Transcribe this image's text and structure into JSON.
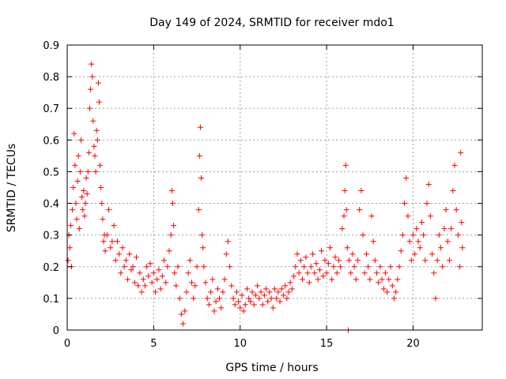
{
  "chart_data": {
    "type": "scatter",
    "title": "Day 149 of 2024, SRMTID for receiver mdo1",
    "xlabel": "GPS time / hours",
    "ylabel": "SRMTID / TECUs",
    "xlim": [
      0,
      24
    ],
    "ylim": [
      0,
      0.9
    ],
    "grid": true,
    "marker": "+",
    "color": "#ff0000",
    "x_ticks": [
      0,
      5,
      10,
      15,
      20
    ],
    "x_tick_labels": [
      "0",
      "5",
      "10",
      "15",
      "20"
    ],
    "y_ticks": [
      0,
      0.1,
      0.2,
      0.3,
      0.4,
      0.5,
      0.6,
      0.7,
      0.8,
      0.9
    ],
    "y_tick_labels": [
      "0",
      "0.1",
      "0.2",
      "0.3",
      "0.4",
      "0.5",
      "0.6",
      "0.7",
      "0.8",
      "0.9"
    ],
    "series": [
      {
        "name": "SRMTID",
        "points": [
          [
            0.05,
            0.22
          ],
          [
            0.1,
            0.3
          ],
          [
            0.15,
            0.26
          ],
          [
            0.2,
            0.33
          ],
          [
            0.25,
            0.2
          ],
          [
            0.3,
            0.38
          ],
          [
            0.35,
            0.45
          ],
          [
            0.4,
            0.62
          ],
          [
            0.45,
            0.52
          ],
          [
            0.5,
            0.4
          ],
          [
            0.55,
            0.35
          ],
          [
            0.6,
            0.47
          ],
          [
            0.65,
            0.55
          ],
          [
            0.7,
            0.32
          ],
          [
            0.75,
            0.5
          ],
          [
            0.8,
            0.6
          ],
          [
            0.85,
            0.42
          ],
          [
            0.9,
            0.38
          ],
          [
            0.95,
            0.44
          ],
          [
            1.0,
            0.36
          ],
          [
            1.05,
            0.4
          ],
          [
            1.1,
            0.48
          ],
          [
            1.15,
            0.43
          ],
          [
            1.2,
            0.5
          ],
          [
            1.25,
            0.56
          ],
          [
            1.3,
            0.7
          ],
          [
            1.35,
            0.76
          ],
          [
            1.4,
            0.84
          ],
          [
            1.45,
            0.8
          ],
          [
            1.5,
            0.66
          ],
          [
            1.55,
            0.58
          ],
          [
            1.6,
            0.55
          ],
          [
            1.65,
            0.5
          ],
          [
            1.7,
            0.63
          ],
          [
            1.75,
            0.6
          ],
          [
            1.8,
            0.78
          ],
          [
            1.85,
            0.72
          ],
          [
            1.9,
            0.52
          ],
          [
            1.95,
            0.45
          ],
          [
            2.0,
            0.4
          ],
          [
            2.05,
            0.35
          ],
          [
            2.1,
            0.28
          ],
          [
            2.15,
            0.3
          ],
          [
            2.2,
            0.25
          ],
          [
            2.3,
            0.3
          ],
          [
            2.4,
            0.38
          ],
          [
            2.5,
            0.26
          ],
          [
            2.6,
            0.28
          ],
          [
            2.7,
            0.33
          ],
          [
            2.8,
            0.22
          ],
          [
            2.9,
            0.28
          ],
          [
            3.0,
            0.24
          ],
          [
            3.1,
            0.18
          ],
          [
            3.2,
            0.26
          ],
          [
            3.3,
            0.2
          ],
          [
            3.4,
            0.22
          ],
          [
            3.5,
            0.16
          ],
          [
            3.6,
            0.24
          ],
          [
            3.7,
            0.19
          ],
          [
            3.8,
            0.2
          ],
          [
            3.9,
            0.15
          ],
          [
            4.0,
            0.23
          ],
          [
            4.1,
            0.14
          ],
          [
            4.2,
            0.18
          ],
          [
            4.3,
            0.12
          ],
          [
            4.4,
            0.16
          ],
          [
            4.5,
            0.14
          ],
          [
            4.6,
            0.2
          ],
          [
            4.7,
            0.17
          ],
          [
            4.8,
            0.21
          ],
          [
            4.9,
            0.15
          ],
          [
            5.0,
            0.18
          ],
          [
            5.1,
            0.12
          ],
          [
            5.2,
            0.16
          ],
          [
            5.3,
            0.19
          ],
          [
            5.4,
            0.13
          ],
          [
            5.5,
            0.17
          ],
          [
            5.6,
            0.22
          ],
          [
            5.7,
            0.15
          ],
          [
            5.8,
            0.2
          ],
          [
            5.9,
            0.25
          ],
          [
            6.0,
            0.3
          ],
          [
            6.05,
            0.44
          ],
          [
            6.1,
            0.4
          ],
          [
            6.15,
            0.33
          ],
          [
            6.2,
            0.18
          ],
          [
            6.3,
            0.14
          ],
          [
            6.4,
            0.2
          ],
          [
            6.5,
            0.1
          ],
          [
            6.6,
            0.05
          ],
          [
            6.7,
            0.02
          ],
          [
            6.8,
            0.06
          ],
          [
            6.9,
            0.12
          ],
          [
            7.0,
            0.18
          ],
          [
            7.1,
            0.22
          ],
          [
            7.2,
            0.15
          ],
          [
            7.3,
            0.1
          ],
          [
            7.4,
            0.14
          ],
          [
            7.5,
            0.2
          ],
          [
            7.6,
            0.38
          ],
          [
            7.65,
            0.55
          ],
          [
            7.7,
            0.64
          ],
          [
            7.75,
            0.48
          ],
          [
            7.8,
            0.3
          ],
          [
            7.85,
            0.26
          ],
          [
            7.9,
            0.2
          ],
          [
            8.0,
            0.15
          ],
          [
            8.1,
            0.1
          ],
          [
            8.2,
            0.08
          ],
          [
            8.3,
            0.12
          ],
          [
            8.4,
            0.16
          ],
          [
            8.5,
            0.06
          ],
          [
            8.6,
            0.09
          ],
          [
            8.7,
            0.13
          ],
          [
            8.8,
            0.1
          ],
          [
            8.9,
            0.07
          ],
          [
            9.0,
            0.12
          ],
          [
            9.1,
            0.16
          ],
          [
            9.2,
            0.24
          ],
          [
            9.3,
            0.28
          ],
          [
            9.4,
            0.2
          ],
          [
            9.5,
            0.14
          ],
          [
            9.6,
            0.1
          ],
          [
            9.7,
            0.08
          ],
          [
            9.8,
            0.12
          ],
          [
            9.9,
            0.09
          ],
          [
            10.0,
            0.07
          ],
          [
            10.1,
            0.11
          ],
          [
            10.2,
            0.06
          ],
          [
            10.3,
            0.08
          ],
          [
            10.4,
            0.13
          ],
          [
            10.5,
            0.1
          ],
          [
            10.6,
            0.09
          ],
          [
            10.7,
            0.12
          ],
          [
            10.8,
            0.08
          ],
          [
            10.9,
            0.11
          ],
          [
            11.0,
            0.14
          ],
          [
            11.1,
            0.1
          ],
          [
            11.2,
            0.12
          ],
          [
            11.3,
            0.08
          ],
          [
            11.4,
            0.11
          ],
          [
            11.5,
            0.13
          ],
          [
            11.6,
            0.09
          ],
          [
            11.7,
            0.12
          ],
          [
            11.8,
            0.1
          ],
          [
            11.9,
            0.07
          ],
          [
            12.0,
            0.13
          ],
          [
            12.1,
            0.1
          ],
          [
            12.2,
            0.12
          ],
          [
            12.3,
            0.09
          ],
          [
            12.4,
            0.13
          ],
          [
            12.5,
            0.11
          ],
          [
            12.6,
            0.14
          ],
          [
            12.7,
            0.1
          ],
          [
            12.8,
            0.12
          ],
          [
            12.9,
            0.15
          ],
          [
            13.0,
            0.13
          ],
          [
            13.1,
            0.17
          ],
          [
            13.2,
            0.2
          ],
          [
            13.3,
            0.24
          ],
          [
            13.4,
            0.18
          ],
          [
            13.5,
            0.22
          ],
          [
            13.6,
            0.16
          ],
          [
            13.7,
            0.2
          ],
          [
            13.8,
            0.23
          ],
          [
            13.9,
            0.18
          ],
          [
            14.0,
            0.15
          ],
          [
            14.1,
            0.2
          ],
          [
            14.2,
            0.24
          ],
          [
            14.3,
            0.18
          ],
          [
            14.4,
            0.21
          ],
          [
            14.5,
            0.16
          ],
          [
            14.6,
            0.19
          ],
          [
            14.7,
            0.25
          ],
          [
            14.8,
            0.17
          ],
          [
            14.9,
            0.22
          ],
          [
            15.0,
            0.18
          ],
          [
            15.1,
            0.21
          ],
          [
            15.2,
            0.26
          ],
          [
            15.3,
            0.16
          ],
          [
            15.4,
            0.2
          ],
          [
            15.5,
            0.23
          ],
          [
            15.6,
            0.18
          ],
          [
            15.7,
            0.22
          ],
          [
            15.8,
            0.2
          ],
          [
            15.9,
            0.32
          ],
          [
            16.0,
            0.36
          ],
          [
            16.05,
            0.44
          ],
          [
            16.1,
            0.52
          ],
          [
            16.15,
            0.38
          ],
          [
            16.2,
            0.26
          ],
          [
            16.25,
            0.0
          ],
          [
            16.3,
            0.22
          ],
          [
            16.4,
            0.18
          ],
          [
            16.5,
            0.24
          ],
          [
            16.6,
            0.2
          ],
          [
            16.7,
            0.16
          ],
          [
            16.8,
            0.22
          ],
          [
            16.9,
            0.38
          ],
          [
            17.0,
            0.44
          ],
          [
            17.1,
            0.3
          ],
          [
            17.2,
            0.18
          ],
          [
            17.3,
            0.24
          ],
          [
            17.4,
            0.2
          ],
          [
            17.5,
            0.16
          ],
          [
            17.6,
            0.36
          ],
          [
            17.7,
            0.28
          ],
          [
            17.8,
            0.22
          ],
          [
            17.9,
            0.18
          ],
          [
            18.0,
            0.15
          ],
          [
            18.1,
            0.2
          ],
          [
            18.2,
            0.16
          ],
          [
            18.3,
            0.13
          ],
          [
            18.4,
            0.18
          ],
          [
            18.5,
            0.12
          ],
          [
            18.6,
            0.16
          ],
          [
            18.7,
            0.2
          ],
          [
            18.8,
            0.14
          ],
          [
            18.9,
            0.1
          ],
          [
            19.0,
            0.12
          ],
          [
            19.1,
            0.16
          ],
          [
            19.2,
            0.2
          ],
          [
            19.3,
            0.25
          ],
          [
            19.4,
            0.3
          ],
          [
            19.5,
            0.4
          ],
          [
            19.6,
            0.48
          ],
          [
            19.7,
            0.36
          ],
          [
            19.8,
            0.28
          ],
          [
            19.9,
            0.22
          ],
          [
            20.0,
            0.3
          ],
          [
            20.1,
            0.24
          ],
          [
            20.2,
            0.32
          ],
          [
            20.3,
            0.28
          ],
          [
            20.4,
            0.26
          ],
          [
            20.5,
            0.34
          ],
          [
            20.6,
            0.3
          ],
          [
            20.7,
            0.22
          ],
          [
            20.8,
            0.4
          ],
          [
            20.9,
            0.46
          ],
          [
            21.0,
            0.36
          ],
          [
            21.1,
            0.24
          ],
          [
            21.2,
            0.18
          ],
          [
            21.3,
            0.1
          ],
          [
            21.4,
            0.22
          ],
          [
            21.5,
            0.3
          ],
          [
            21.6,
            0.26
          ],
          [
            21.7,
            0.2
          ],
          [
            21.8,
            0.32
          ],
          [
            21.9,
            0.38
          ],
          [
            22.0,
            0.28
          ],
          [
            22.1,
            0.22
          ],
          [
            22.2,
            0.32
          ],
          [
            22.3,
            0.44
          ],
          [
            22.4,
            0.52
          ],
          [
            22.5,
            0.38
          ],
          [
            22.6,
            0.3
          ],
          [
            22.7,
            0.2
          ],
          [
            22.75,
            0.56
          ],
          [
            22.8,
            0.34
          ],
          [
            22.85,
            0.26
          ]
        ]
      }
    ]
  }
}
